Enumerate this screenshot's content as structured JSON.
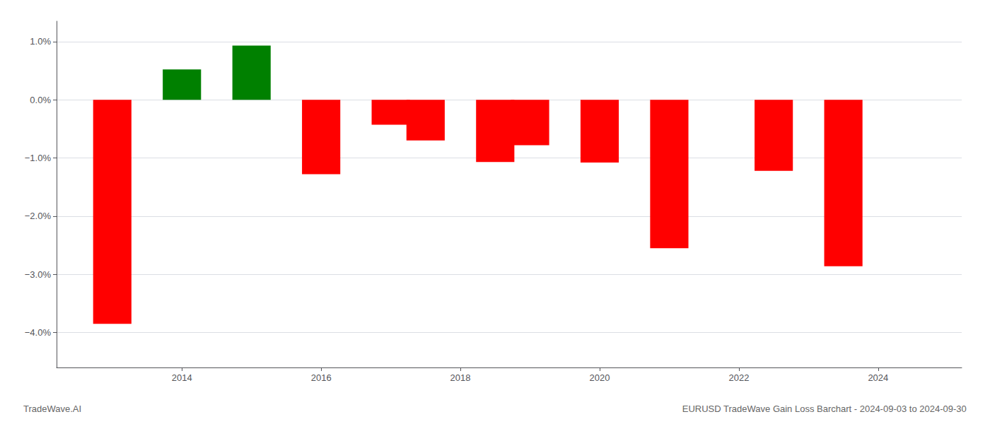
{
  "chart_data": {
    "type": "bar",
    "title": "EURUSD TradeWave Gain Loss Barchart - 2024-09-03 to 2024-09-30",
    "annotations": [
      "TradeWave.AI"
    ],
    "x": [
      2013,
      2014,
      2015,
      2016,
      2017,
      2017.5,
      2018.5,
      2019,
      2020,
      2021,
      2022.5,
      2023.5
    ],
    "values": [
      -3.85,
      0.52,
      0.93,
      -1.28,
      -0.43,
      -0.7,
      -1.07,
      -0.78,
      -1.08,
      -2.55,
      -1.22,
      -2.86
    ],
    "colors": [
      "#ff0000",
      "#008000",
      "#008000",
      "#ff0000",
      "#ff0000",
      "#ff0000",
      "#ff0000",
      "#ff0000",
      "#ff0000",
      "#ff0000",
      "#ff0000",
      "#ff0000"
    ],
    "xlim": [
      2012.2,
      2025.2
    ],
    "xticks": [
      2014,
      2016,
      2018,
      2020,
      2022,
      2024
    ],
    "ylim": [
      -4.6,
      1.35
    ],
    "yticks": [
      {
        "value": -4.0,
        "label": "−4.0%"
      },
      {
        "value": -3.0,
        "label": "−3.0%"
      },
      {
        "value": -2.0,
        "label": "−2.0%"
      },
      {
        "value": -1.0,
        "label": "−1.0%"
      },
      {
        "value": 0.0,
        "label": "0.0%"
      },
      {
        "value": 1.0,
        "label": "1.0%"
      }
    ],
    "grid": true
  }
}
